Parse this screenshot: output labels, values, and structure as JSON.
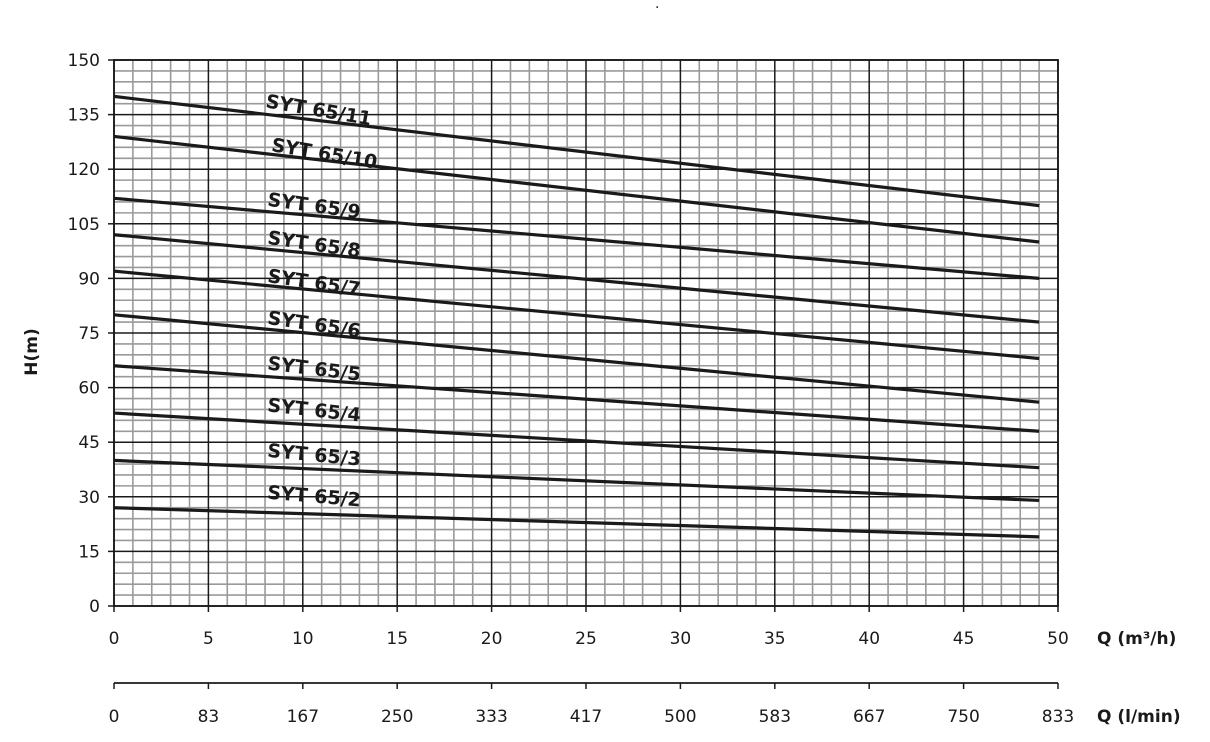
{
  "chart_data": {
    "type": "line",
    "title": "",
    "ylabel": "H(m)",
    "xlabel": "Q (m³/h)",
    "xlabel_secondary": "Q (l/min)",
    "top_mark": ".",
    "xlim": [
      0,
      50
    ],
    "ylim": [
      0,
      150
    ],
    "x_ticks": [
      0,
      5,
      10,
      15,
      20,
      25,
      30,
      35,
      40,
      45,
      50
    ],
    "y_ticks": [
      0,
      15,
      30,
      45,
      60,
      75,
      90,
      105,
      120,
      135,
      150
    ],
    "x_ticks_secondary": [
      "0",
      "83",
      "167",
      "250",
      "333",
      "417",
      "500",
      "583",
      "667",
      "750",
      "833"
    ],
    "grid": true,
    "legend": "none (labels placed on lines)",
    "colors": {
      "line": "#1a1a1a",
      "grid_major": "#1a1a1a",
      "grid_minor": "#9a9a9a"
    },
    "series": [
      {
        "name": "SYT 65/11",
        "x": [
          0,
          49
        ],
        "y": [
          140,
          110
        ],
        "label_at": [
          8,
          137
        ]
      },
      {
        "name": "SYT 65/10",
        "x": [
          0,
          49
        ],
        "y": [
          129,
          100
        ],
        "label_at": [
          8.3,
          125
        ]
      },
      {
        "name": "SYT 65/9",
        "x": [
          0,
          49
        ],
        "y": [
          112,
          90
        ],
        "label_at": [
          8.1,
          110
        ]
      },
      {
        "name": "SYT 65/8",
        "x": [
          0,
          49
        ],
        "y": [
          102,
          78
        ],
        "label_at": [
          8.1,
          99.5
        ]
      },
      {
        "name": "SYT 65/7",
        "x": [
          0,
          49
        ],
        "y": [
          92,
          68
        ],
        "label_at": [
          8.1,
          89
        ]
      },
      {
        "name": "SYT 65/6",
        "x": [
          0,
          49
        ],
        "y": [
          80,
          56
        ],
        "label_at": [
          8.1,
          77.5
        ]
      },
      {
        "name": "SYT 65/5",
        "x": [
          0,
          49
        ],
        "y": [
          66,
          48
        ],
        "label_at": [
          8.1,
          65
        ]
      },
      {
        "name": "SYT 65/4",
        "x": [
          0,
          49
        ],
        "y": [
          53,
          38
        ],
        "label_at": [
          8.1,
          53.5
        ]
      },
      {
        "name": "SYT 65/3",
        "x": [
          0,
          49
        ],
        "y": [
          40,
          29
        ],
        "label_at": [
          8.1,
          41
        ]
      },
      {
        "name": "SYT 65/2",
        "x": [
          0,
          49
        ],
        "y": [
          27,
          19
        ],
        "label_at": [
          8.1,
          29.5
        ]
      }
    ]
  }
}
